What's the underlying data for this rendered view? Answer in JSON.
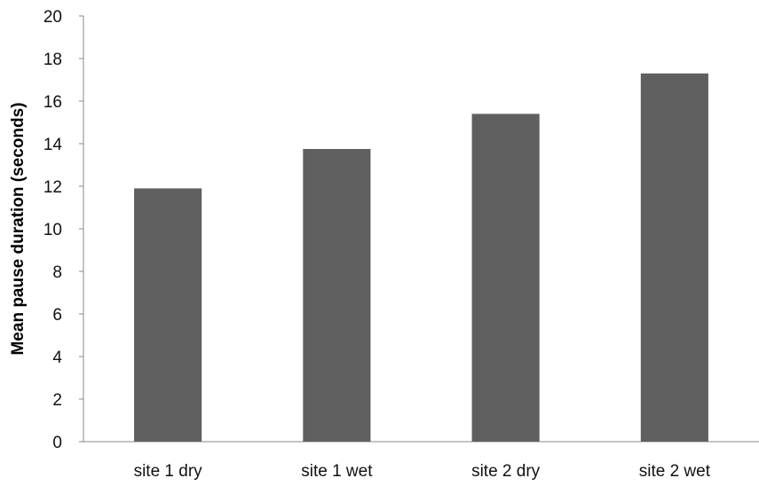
{
  "chart_data": {
    "type": "bar",
    "title": "",
    "xlabel": "",
    "ylabel": "Mean pause duration (seconds)",
    "categories": [
      "site 1 dry",
      "site 1 wet",
      "site 2 dry",
      "site 2 wet"
    ],
    "values": [
      11.9,
      13.75,
      15.4,
      17.3
    ],
    "ylim": [
      0,
      20
    ],
    "yticks": [
      0,
      2,
      4,
      6,
      8,
      10,
      12,
      14,
      16,
      18,
      20
    ],
    "grid": false,
    "legend": "none",
    "bar_color": "#5f5f5f",
    "axis_color": "#888888"
  }
}
